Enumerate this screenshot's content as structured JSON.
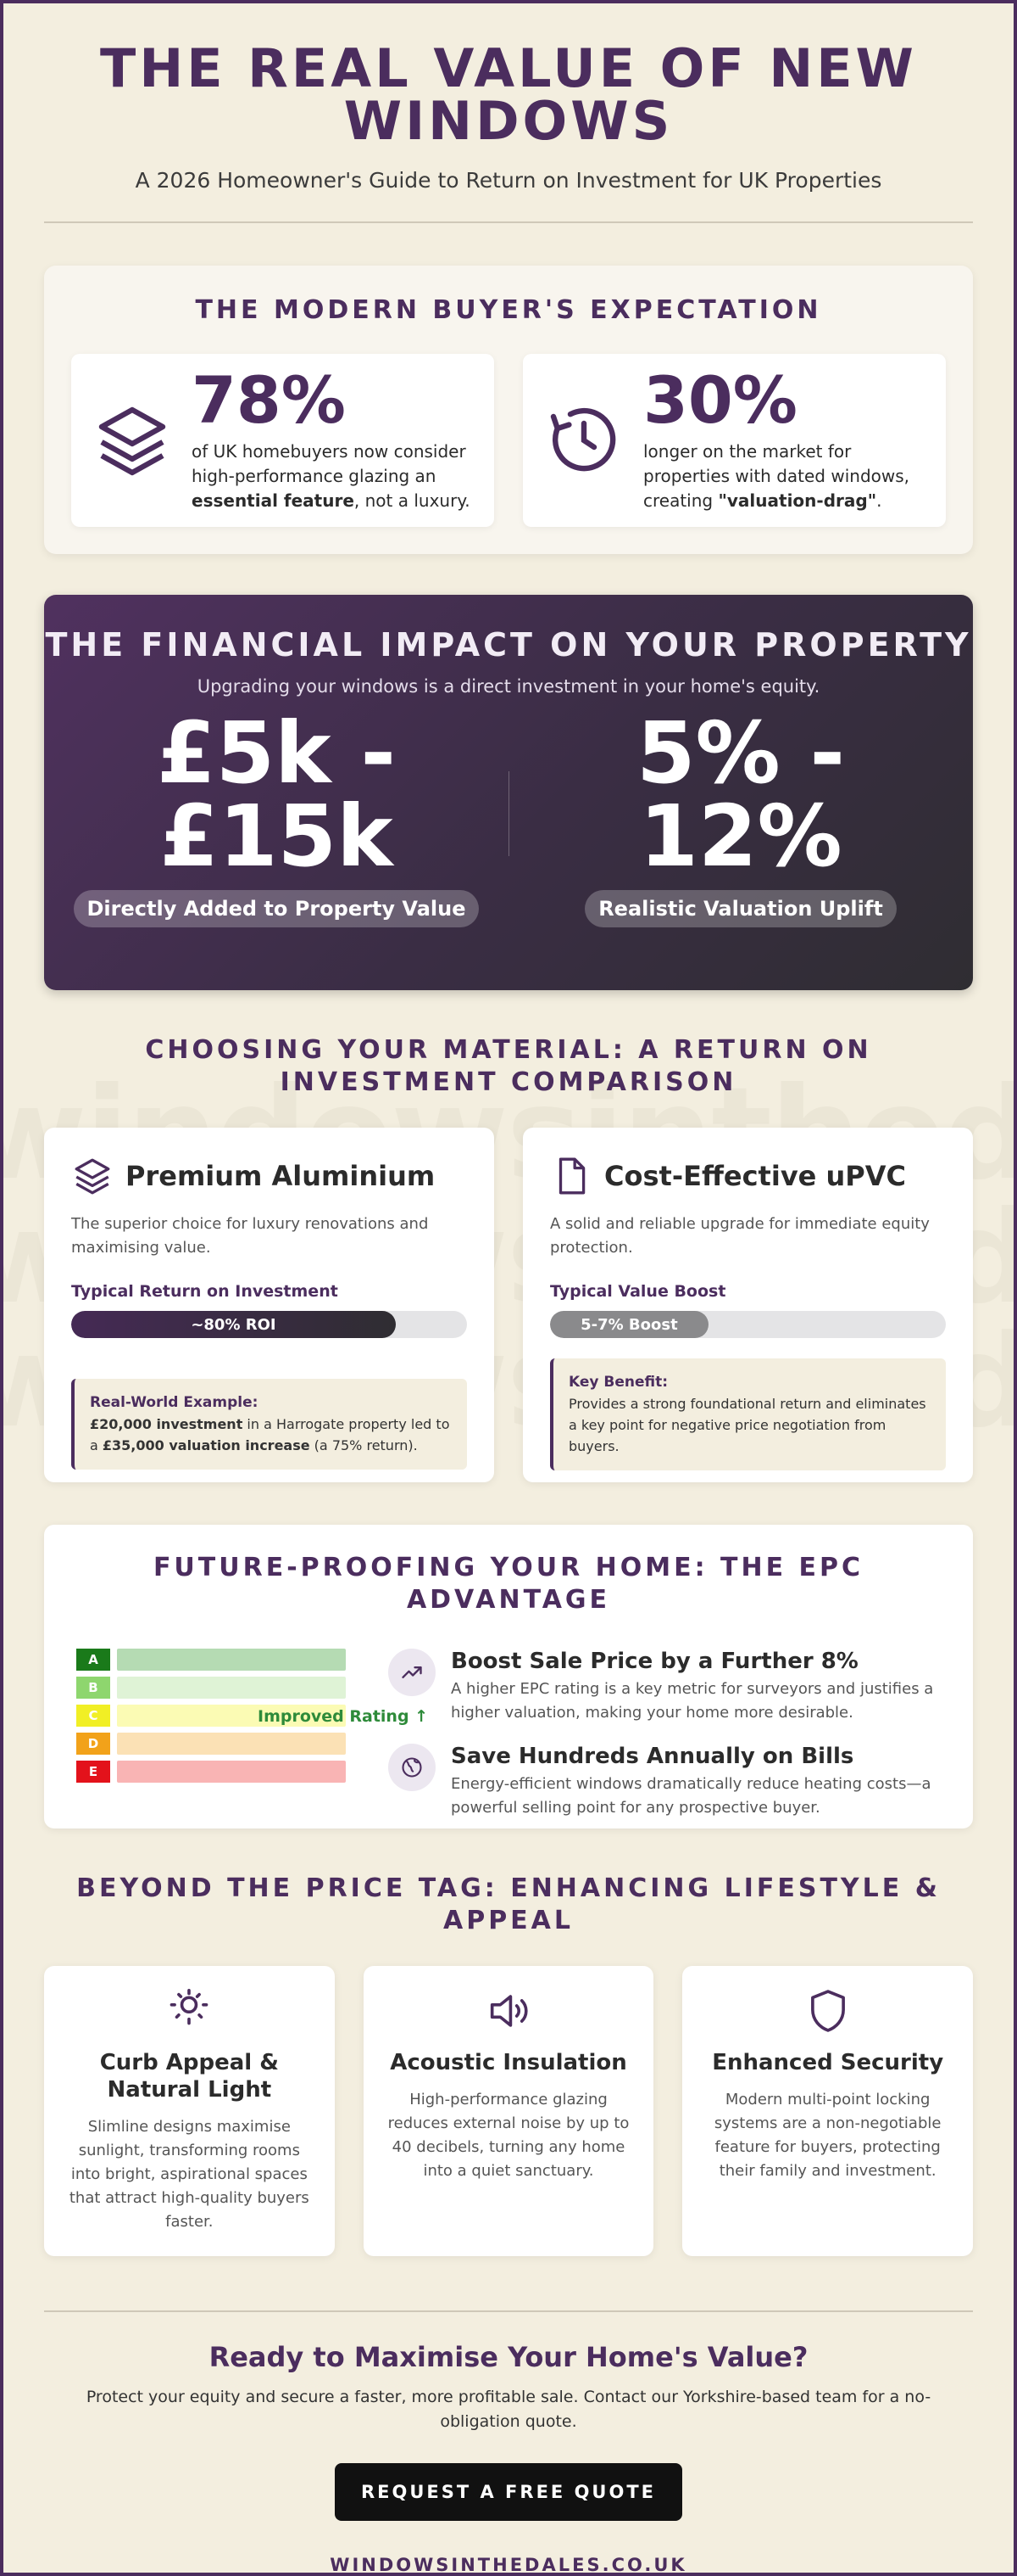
{
  "header": {
    "title": "THE REAL VALUE OF NEW WINDOWS",
    "subtitle": "A 2026 Homeowner's Guide to Return on Investment for UK Properties"
  },
  "expectation": {
    "title": "THE MODERN BUYER'S EXPECTATION",
    "cards": [
      {
        "icon": "layers-icon",
        "stat": "78%",
        "text_before": "of UK homebuyers now consider high-performance glazing an ",
        "text_bold": "essential feature",
        "text_after": ", not a luxury."
      },
      {
        "icon": "clock-icon",
        "stat": "30%",
        "text_before": "longer on the market for properties with dated windows, creating ",
        "text_bold": "\"valuation-drag\"",
        "text_after": "."
      }
    ]
  },
  "financial": {
    "title": "THE FINANCIAL IMPACT ON YOUR PROPERTY",
    "subtitle": "Upgrading your windows is a direct investment in your home's equity.",
    "left": {
      "value_line1": "£5k -",
      "value_line2": "£15k",
      "label": "Directly Added to Property Value"
    },
    "right": {
      "value_line1": "5% -",
      "value_line2": "12%",
      "label": "Realistic Valuation Uplift"
    }
  },
  "material": {
    "title": "CHOOSING YOUR MATERIAL: A RETURN ON INVESTMENT COMPARISON",
    "watermark": [
      "windowsinthedales",
      "windowsinthedales",
      "windowsinthedales"
    ],
    "cards": [
      {
        "icon": "layers-icon",
        "name": "Premium Aluminium",
        "desc": "The superior choice for luxury renovations and maximising value.",
        "bar_label": "Typical Return on Investment",
        "bar_text": "~80% ROI",
        "bar_fraction": 0.82,
        "note_title": "Real-World Example:",
        "note_b1": "£20,000 investment",
        "note_t1": " in a Harrogate property led to a ",
        "note_b2": "£35,000 valuation increase",
        "note_t2": " (a 75% return)."
      },
      {
        "icon": "document-icon",
        "name": "Cost-Effective uPVC",
        "desc": "A solid and reliable upgrade for immediate equity protection.",
        "bar_label": "Typical Value Boost",
        "bar_text": "5-7% Boost",
        "bar_fraction": 0.4,
        "note_title": "Key Benefit:",
        "note_text": "Provides a strong foundational return and eliminates a key point for negative price negotiation from buyers."
      }
    ]
  },
  "epc": {
    "title": "FUTURE-PROOFING YOUR HOME: THE EPC ADVANTAGE",
    "ratings": [
      {
        "letter": "A",
        "color": "#1a7a1a",
        "bar": "#b5dbb3"
      },
      {
        "letter": "B",
        "color": "#8ed66e",
        "bar": "#dff3d6"
      },
      {
        "letter": "C",
        "color": "#f1ef25",
        "bar": "#fbfbb4"
      },
      {
        "letter": "D",
        "color": "#f2a21a",
        "bar": "#fbe1b5"
      },
      {
        "letter": "E",
        "color": "#e3121b",
        "bar": "#f9b4b4"
      }
    ],
    "improved_label": "Improved Rating ↑",
    "items": [
      {
        "icon": "trending-up-icon",
        "heading": "Boost Sale Price by a Further 8%",
        "text": "A higher EPC rating is a key metric for surveyors and justifies a higher valuation, making your home more desirable."
      },
      {
        "icon": "globe-icon",
        "heading": "Save Hundreds Annually on Bills",
        "text": "Energy-efficient windows dramatically reduce heating costs—a powerful selling point for any prospective buyer."
      }
    ]
  },
  "lifestyle": {
    "title": "BEYOND THE PRICE TAG: ENHANCING LIFESTYLE & APPEAL",
    "cards": [
      {
        "icon": "sun-icon",
        "heading_line1": "Curb Appeal &",
        "heading_line2": "Natural Light",
        "text": "Slimline designs maximise sunlight, transforming rooms into bright, aspirational spaces that attract high-quality buyers faster."
      },
      {
        "icon": "speaker-icon",
        "heading_line1": "Acoustic Insulation",
        "heading_line2": "",
        "text": "High-performance glazing reduces external noise by up to 40 decibels, turning any home into a quiet sanctuary."
      },
      {
        "icon": "shield-icon",
        "heading_line1": "Enhanced Security",
        "heading_line2": "",
        "text": "Modern multi-point locking systems are a non-negotiable feature for buyers, protecting their family and investment."
      }
    ]
  },
  "cta": {
    "heading": "Ready to Maximise Your Home's Value?",
    "text": "Protect your equity and secure a faster, more profitable sale. Contact our Yorkshire-based team for a no-obligation quote.",
    "button": "REQUEST A FREE QUOTE",
    "website": "WINDOWSINTHEDALES.CO.UK"
  },
  "colors": {
    "brand": "#4b2d5e",
    "background": "#f3eedf",
    "dark": "#111111"
  }
}
